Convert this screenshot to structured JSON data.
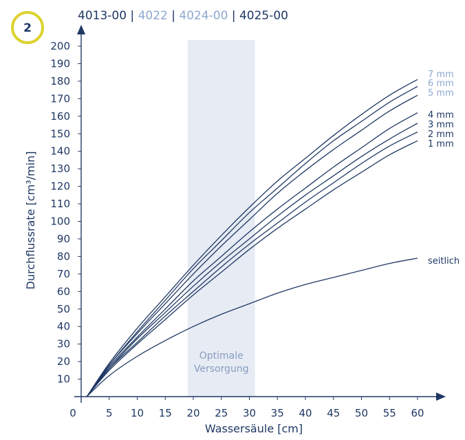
{
  "badge": {
    "label": "2"
  },
  "header": {
    "items": [
      {
        "text": "4013-00",
        "muted": false
      },
      {
        "text": " | ",
        "muted": false
      },
      {
        "text": "4022",
        "muted": true
      },
      {
        "text": " | ",
        "muted": false
      },
      {
        "text": "4024-00",
        "muted": true
      },
      {
        "text": " | ",
        "muted": false
      },
      {
        "text": "4025-00",
        "muted": false
      }
    ]
  },
  "colors": {
    "primary": "#1f3864",
    "muted": "#8fa8cf",
    "band": "#e6ebf4",
    "badge_ring": "#ddd22f"
  },
  "chart_data": {
    "type": "line",
    "xlabel": "Wassersäule [cm]",
    "ylabel": "Durchflussrate [cm³/min]",
    "xlim": [
      0,
      62
    ],
    "ylim": [
      0,
      205
    ],
    "x_ticks": [
      0,
      5,
      10,
      15,
      20,
      25,
      30,
      35,
      40,
      45,
      50,
      55,
      60
    ],
    "y_ticks": [
      10,
      20,
      30,
      40,
      50,
      60,
      70,
      80,
      90,
      100,
      110,
      120,
      130,
      140,
      150,
      160,
      170,
      180,
      190,
      200
    ],
    "band": {
      "label_lines": [
        "Optimale",
        "Versorgung"
      ],
      "x_range": [
        19,
        31
      ]
    },
    "x": [
      1,
      5,
      10,
      15,
      20,
      25,
      30,
      35,
      40,
      45,
      50,
      55,
      60
    ],
    "series": [
      {
        "name": "7 mm",
        "muted": true,
        "values": [
          0,
          19,
          39,
          57,
          75,
          92,
          108,
          123,
          136,
          149,
          161,
          172,
          181
        ]
      },
      {
        "name": "6 mm",
        "muted": true,
        "values": [
          0,
          18,
          37,
          55,
          73,
          89,
          105,
          119,
          133,
          146,
          157,
          168,
          177
        ]
      },
      {
        "name": "5 mm",
        "muted": true,
        "values": [
          0,
          18,
          36,
          53,
          70,
          86,
          101,
          116,
          129,
          141,
          152,
          163,
          172
        ]
      },
      {
        "name": "4 mm",
        "muted": false,
        "values": [
          0,
          17,
          34,
          50,
          66,
          80,
          94,
          107,
          119,
          131,
          142,
          153,
          162
        ]
      },
      {
        "name": "3 mm",
        "muted": false,
        "values": [
          0,
          16,
          33,
          48,
          63,
          77,
          90,
          103,
          115,
          126,
          137,
          147,
          156
        ]
      },
      {
        "name": "2 mm",
        "muted": false,
        "values": [
          0,
          16,
          31,
          46,
          60,
          74,
          87,
          99,
          111,
          122,
          133,
          143,
          151
        ]
      },
      {
        "name": "1 mm",
        "muted": false,
        "values": [
          0,
          15,
          30,
          44,
          58,
          71,
          84,
          96,
          107,
          118,
          128,
          138,
          146
        ]
      },
      {
        "name": "seitlich",
        "muted": false,
        "values": [
          0,
          12,
          23,
          32,
          40,
          47,
          53,
          59,
          64,
          68,
          72,
          76,
          79
        ]
      }
    ]
  }
}
